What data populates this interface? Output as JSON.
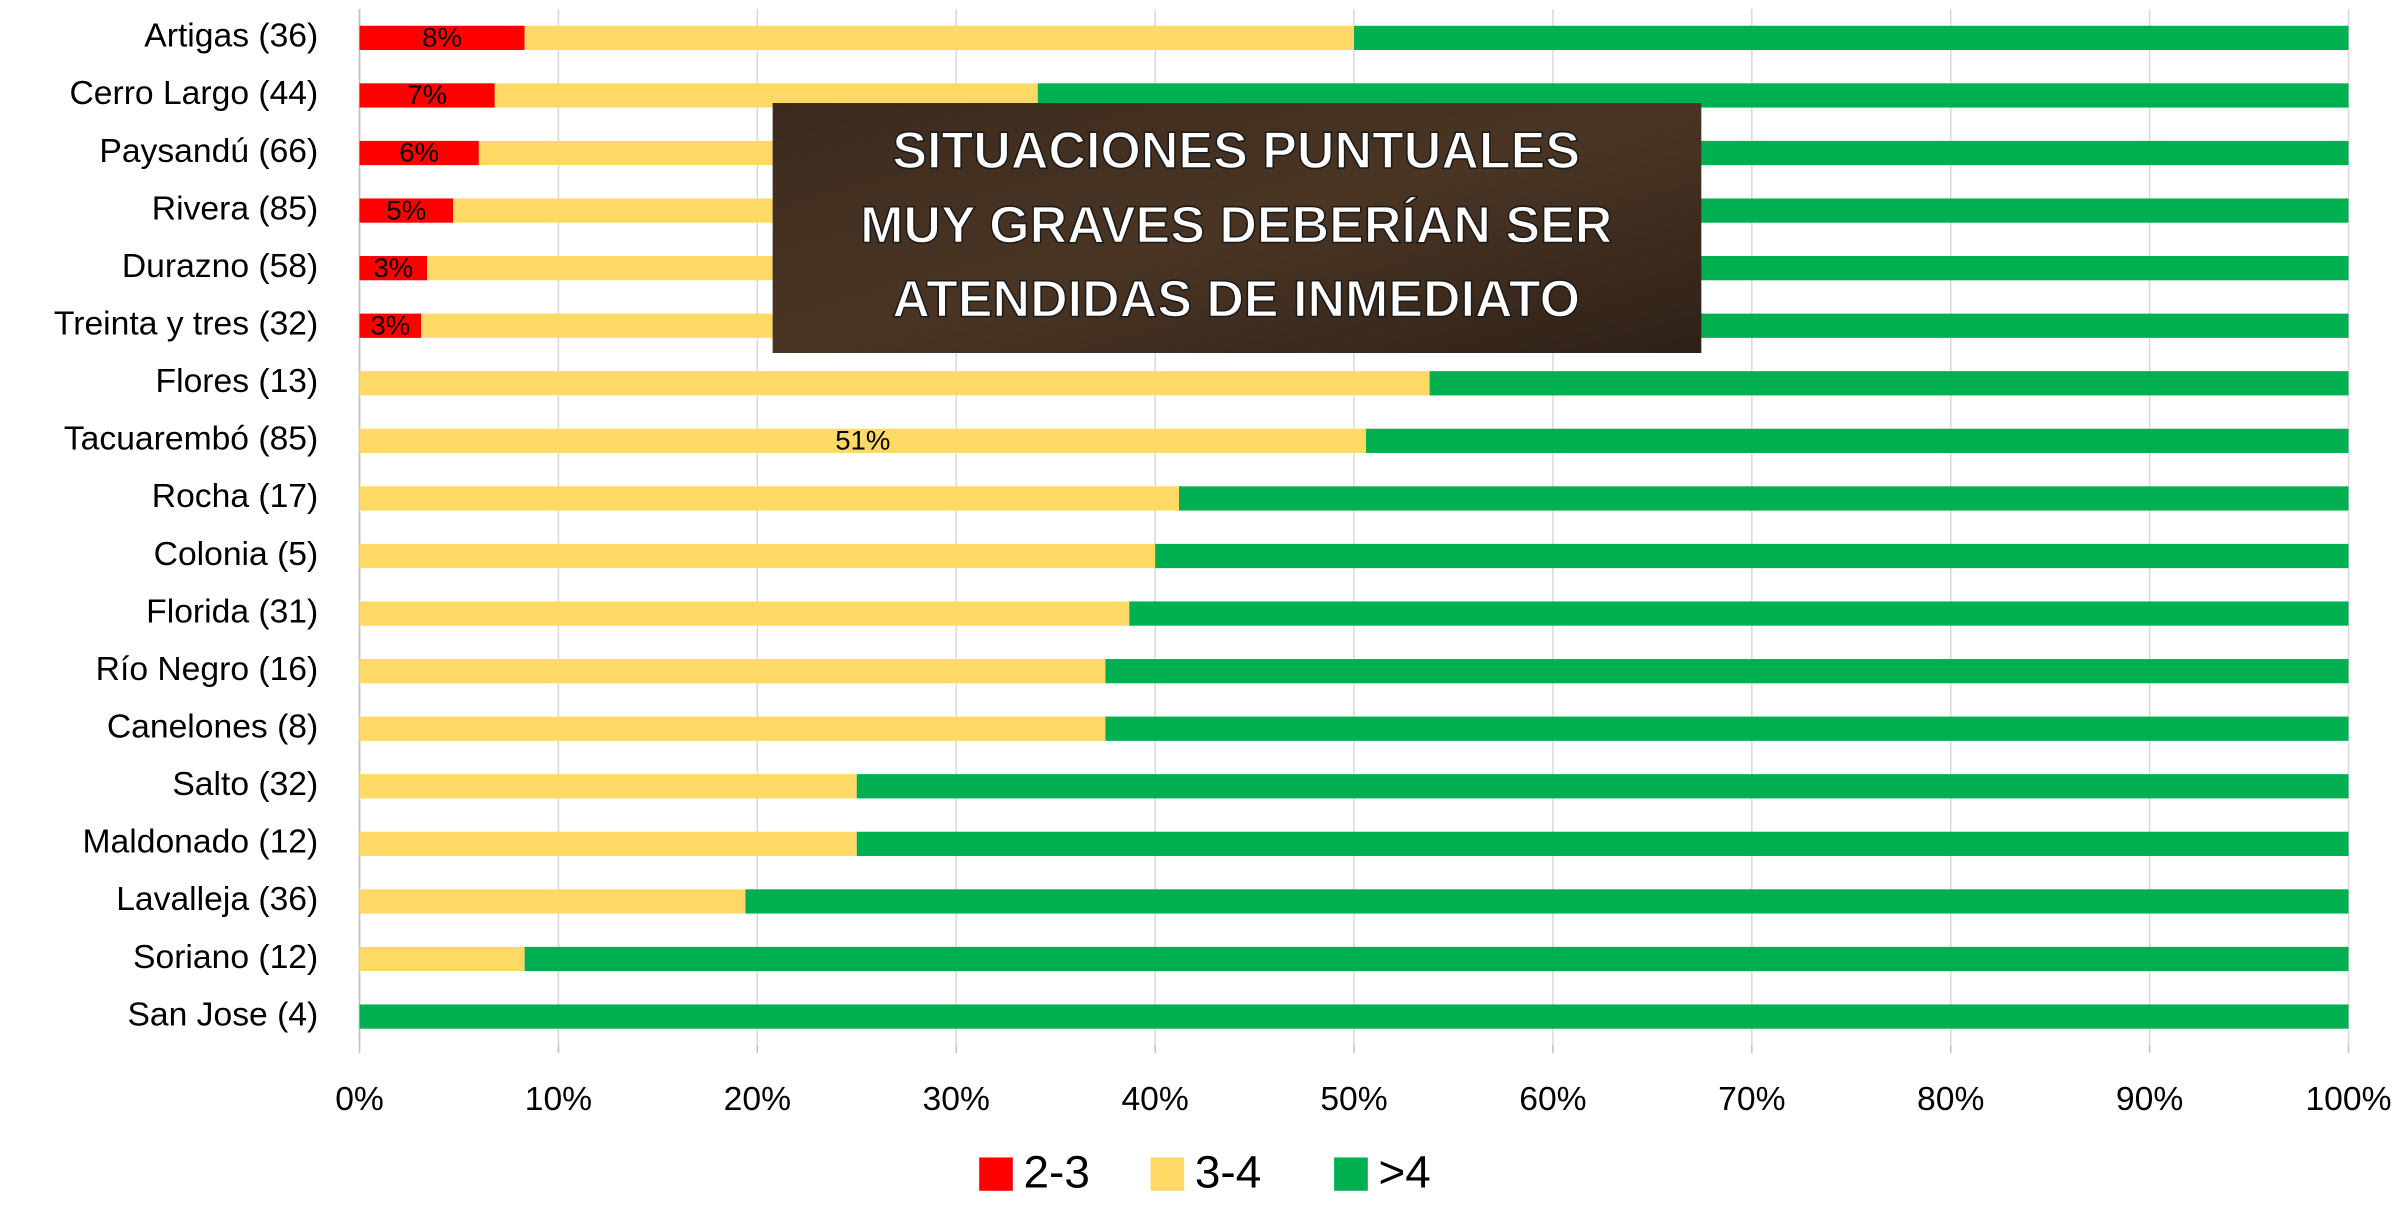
{
  "chart_data": {
    "type": "stacked-barh",
    "categories": [
      "Artigas (36)",
      "Cerro Largo (44)",
      "Paysandú (66)",
      "Rivera (85)",
      "Durazno (58)",
      "Treinta y tres (32)",
      "Flores (13)",
      "Tacuarembó (85)",
      "Rocha (17)",
      "Colonia (5)",
      "Florida (31)",
      "Río Negro (16)",
      "Canelones (8)",
      "Salto (32)",
      "Maldonado (12)",
      "Lavalleja (36)",
      "Soriano (12)",
      "San Jose (4)"
    ],
    "series": [
      {
        "name": "2-3",
        "color": "#ff0000",
        "values": [
          8.3,
          6.8,
          6.0,
          4.7,
          3.4,
          3.1,
          0,
          0,
          0,
          0,
          0,
          0,
          0,
          0,
          0,
          0,
          0,
          0
        ],
        "value_labels": [
          "8%",
          "7%",
          "6%",
          "5%",
          "3%",
          "3%",
          null,
          null,
          null,
          null,
          null,
          null,
          null,
          null,
          null,
          null,
          null,
          null
        ]
      },
      {
        "name": "3-4",
        "color": "#ffd966",
        "values": [
          41.7,
          27.3,
          30,
          35,
          40,
          34.4,
          53.8,
          50.6,
          41.2,
          40,
          38.7,
          37.5,
          37.5,
          25,
          25,
          19.4,
          8.3,
          0
        ],
        "value_labels": [
          null,
          null,
          null,
          null,
          null,
          null,
          null,
          "51%",
          null,
          null,
          null,
          null,
          null,
          null,
          null,
          null,
          null,
          null
        ]
      },
      {
        "name": ">4",
        "color": "#00b050",
        "values": [
          50,
          65.9,
          64,
          60.3,
          56.6,
          62.5,
          46.2,
          49.4,
          58.8,
          60,
          61.3,
          62.5,
          62.5,
          75,
          75,
          80.6,
          91.7,
          100
        ]
      }
    ],
    "xlim": [
      0,
      100
    ],
    "xticks": [
      {
        "value": 0,
        "label": "0%"
      },
      {
        "value": 10,
        "label": "10%"
      },
      {
        "value": 20,
        "label": "20%"
      },
      {
        "value": 30,
        "label": "30%"
      },
      {
        "value": 40,
        "label": "40%"
      },
      {
        "value": 50,
        "label": "50%"
      },
      {
        "value": 60,
        "label": "60%"
      },
      {
        "value": 70,
        "label": "70%"
      },
      {
        "value": 80,
        "label": "80%"
      },
      {
        "value": 90,
        "label": "90%"
      },
      {
        "value": 100,
        "label": "100%"
      }
    ],
    "grid": true,
    "legend": "bottom",
    "annotation": [
      "SITUACIONES PUNTUALES",
      "MUY GRAVES DEBERÍAN SER",
      "ATENDIDAS DE INMEDIATO"
    ]
  }
}
